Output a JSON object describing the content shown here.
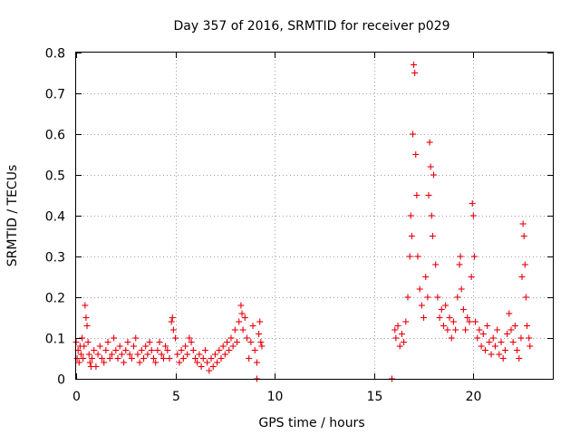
{
  "chart_data": {
    "type": "scatter",
    "title": "Day 357 of 2016, SRMTID for receiver p029",
    "xlabel": "GPS time / hours",
    "ylabel": "SRMTID / TECUs",
    "xlim": [
      0,
      24
    ],
    "ylim": [
      0,
      0.8
    ],
    "x_ticks": [
      0,
      5,
      10,
      15,
      20
    ],
    "y_ticks": [
      0,
      0.1,
      0.2,
      0.3,
      0.4,
      0.5,
      0.6,
      0.7,
      0.8
    ],
    "x_tick_labels": [
      "0",
      "5",
      "10",
      "15",
      "20"
    ],
    "y_tick_labels": [
      "0",
      "0.1",
      "0.2",
      "0.3",
      "0.4",
      "0.5",
      "0.6",
      "0.7",
      "0.8"
    ],
    "grid": true,
    "marker": "+",
    "marker_color": "#e8000b",
    "series": [
      {
        "name": "SRMTID",
        "points": [
          [
            0.0,
            0.09
          ],
          [
            0.05,
            0.05
          ],
          [
            0.1,
            0.07
          ],
          [
            0.15,
            0.04
          ],
          [
            0.2,
            0.08
          ],
          [
            0.25,
            0.06
          ],
          [
            0.3,
            0.1
          ],
          [
            0.35,
            0.05
          ],
          [
            0.4,
            0.08
          ],
          [
            0.45,
            0.18
          ],
          [
            0.5,
            0.15
          ],
          [
            0.55,
            0.13
          ],
          [
            0.6,
            0.09
          ],
          [
            0.65,
            0.06
          ],
          [
            0.7,
            0.04
          ],
          [
            0.75,
            0.03
          ],
          [
            0.8,
            0.05
          ],
          [
            0.9,
            0.07
          ],
          [
            1.0,
            0.03
          ],
          [
            1.1,
            0.06
          ],
          [
            1.2,
            0.08
          ],
          [
            1.3,
            0.05
          ],
          [
            1.4,
            0.04
          ],
          [
            1.5,
            0.07
          ],
          [
            1.6,
            0.09
          ],
          [
            1.7,
            0.05
          ],
          [
            1.8,
            0.06
          ],
          [
            1.9,
            0.1
          ],
          [
            2.0,
            0.07
          ],
          [
            2.1,
            0.05
          ],
          [
            2.2,
            0.08
          ],
          [
            2.3,
            0.06
          ],
          [
            2.4,
            0.04
          ],
          [
            2.5,
            0.07
          ],
          [
            2.6,
            0.09
          ],
          [
            2.7,
            0.06
          ],
          [
            2.8,
            0.05
          ],
          [
            2.9,
            0.08
          ],
          [
            3.0,
            0.1
          ],
          [
            3.1,
            0.06
          ],
          [
            3.2,
            0.04
          ],
          [
            3.3,
            0.07
          ],
          [
            3.4,
            0.05
          ],
          [
            3.5,
            0.08
          ],
          [
            3.6,
            0.06
          ],
          [
            3.7,
            0.09
          ],
          [
            3.8,
            0.07
          ],
          [
            3.9,
            0.05
          ],
          [
            4.0,
            0.04
          ],
          [
            4.1,
            0.07
          ],
          [
            4.2,
            0.09
          ],
          [
            4.3,
            0.06
          ],
          [
            4.4,
            0.05
          ],
          [
            4.5,
            0.08
          ],
          [
            4.6,
            0.07
          ],
          [
            4.7,
            0.05
          ],
          [
            4.8,
            0.14
          ],
          [
            4.85,
            0.15
          ],
          [
            4.9,
            0.12
          ],
          [
            5.0,
            0.1
          ],
          [
            5.1,
            0.06
          ],
          [
            5.2,
            0.04
          ],
          [
            5.3,
            0.07
          ],
          [
            5.4,
            0.05
          ],
          [
            5.5,
            0.08
          ],
          [
            5.6,
            0.06
          ],
          [
            5.7,
            0.1
          ],
          [
            5.8,
            0.09
          ],
          [
            5.9,
            0.07
          ],
          [
            6.0,
            0.05
          ],
          [
            6.1,
            0.04
          ],
          [
            6.2,
            0.06
          ],
          [
            6.3,
            0.03
          ],
          [
            6.4,
            0.05
          ],
          [
            6.5,
            0.07
          ],
          [
            6.6,
            0.04
          ],
          [
            6.7,
            0.02
          ],
          [
            6.8,
            0.05
          ],
          [
            6.9,
            0.03
          ],
          [
            7.0,
            0.06
          ],
          [
            7.1,
            0.04
          ],
          [
            7.2,
            0.07
          ],
          [
            7.3,
            0.05
          ],
          [
            7.4,
            0.08
          ],
          [
            7.5,
            0.06
          ],
          [
            7.6,
            0.09
          ],
          [
            7.7,
            0.07
          ],
          [
            7.8,
            0.1
          ],
          [
            7.9,
            0.08
          ],
          [
            8.0,
            0.12
          ],
          [
            8.1,
            0.09
          ],
          [
            8.2,
            0.14
          ],
          [
            8.3,
            0.18
          ],
          [
            8.35,
            0.16
          ],
          [
            8.4,
            0.12
          ],
          [
            8.5,
            0.15
          ],
          [
            8.6,
            0.1
          ],
          [
            8.7,
            0.05
          ],
          [
            8.8,
            0.09
          ],
          [
            8.9,
            0.13
          ],
          [
            9.0,
            0.07
          ],
          [
            9.1,
            0.04
          ],
          [
            9.2,
            0.11
          ],
          [
            9.25,
            0.14
          ],
          [
            9.3,
            0.09
          ],
          [
            9.35,
            0.08
          ],
          [
            9.1,
            0.0
          ],
          [
            15.9,
            0.0
          ],
          [
            16.05,
            0.12
          ],
          [
            16.1,
            0.1
          ],
          [
            16.2,
            0.13
          ],
          [
            16.3,
            0.08
          ],
          [
            16.4,
            0.11
          ],
          [
            16.5,
            0.09
          ],
          [
            16.6,
            0.14
          ],
          [
            16.7,
            0.2
          ],
          [
            16.8,
            0.3
          ],
          [
            16.85,
            0.4
          ],
          [
            16.9,
            0.35
          ],
          [
            16.95,
            0.6
          ],
          [
            17.0,
            0.77
          ],
          [
            17.05,
            0.75
          ],
          [
            17.1,
            0.55
          ],
          [
            17.15,
            0.45
          ],
          [
            17.2,
            0.3
          ],
          [
            17.3,
            0.22
          ],
          [
            17.4,
            0.18
          ],
          [
            17.5,
            0.15
          ],
          [
            17.6,
            0.25
          ],
          [
            17.7,
            0.2
          ],
          [
            17.75,
            0.45
          ],
          [
            17.8,
            0.58
          ],
          [
            17.85,
            0.52
          ],
          [
            17.9,
            0.4
          ],
          [
            17.95,
            0.35
          ],
          [
            18.0,
            0.5
          ],
          [
            18.1,
            0.28
          ],
          [
            18.2,
            0.2
          ],
          [
            18.3,
            0.15
          ],
          [
            18.4,
            0.17
          ],
          [
            18.5,
            0.13
          ],
          [
            18.6,
            0.18
          ],
          [
            18.7,
            0.12
          ],
          [
            18.8,
            0.15
          ],
          [
            18.9,
            0.1
          ],
          [
            19.0,
            0.14
          ],
          [
            19.1,
            0.12
          ],
          [
            19.2,
            0.2
          ],
          [
            19.3,
            0.28
          ],
          [
            19.35,
            0.3
          ],
          [
            19.4,
            0.22
          ],
          [
            19.5,
            0.17
          ],
          [
            19.6,
            0.12
          ],
          [
            19.7,
            0.15
          ],
          [
            19.8,
            0.14
          ],
          [
            19.9,
            0.25
          ],
          [
            19.95,
            0.43
          ],
          [
            20.0,
            0.4
          ],
          [
            20.05,
            0.3
          ],
          [
            20.1,
            0.14
          ],
          [
            20.2,
            0.1
          ],
          [
            20.3,
            0.12
          ],
          [
            20.4,
            0.08
          ],
          [
            20.5,
            0.11
          ],
          [
            20.6,
            0.07
          ],
          [
            20.7,
            0.13
          ],
          [
            20.8,
            0.09
          ],
          [
            20.9,
            0.06
          ],
          [
            21.0,
            0.1
          ],
          [
            21.1,
            0.08
          ],
          [
            21.2,
            0.12
          ],
          [
            21.3,
            0.06
          ],
          [
            21.4,
            0.09
          ],
          [
            21.5,
            0.05
          ],
          [
            21.6,
            0.07
          ],
          [
            21.7,
            0.11
          ],
          [
            21.8,
            0.16
          ],
          [
            21.9,
            0.12
          ],
          [
            22.0,
            0.09
          ],
          [
            22.1,
            0.13
          ],
          [
            22.2,
            0.07
          ],
          [
            22.3,
            0.05
          ],
          [
            22.4,
            0.1
          ],
          [
            22.45,
            0.25
          ],
          [
            22.5,
            0.38
          ],
          [
            22.55,
            0.35
          ],
          [
            22.6,
            0.28
          ],
          [
            22.65,
            0.2
          ],
          [
            22.7,
            0.13
          ],
          [
            22.8,
            0.1
          ],
          [
            22.85,
            0.08
          ]
        ]
      }
    ]
  }
}
